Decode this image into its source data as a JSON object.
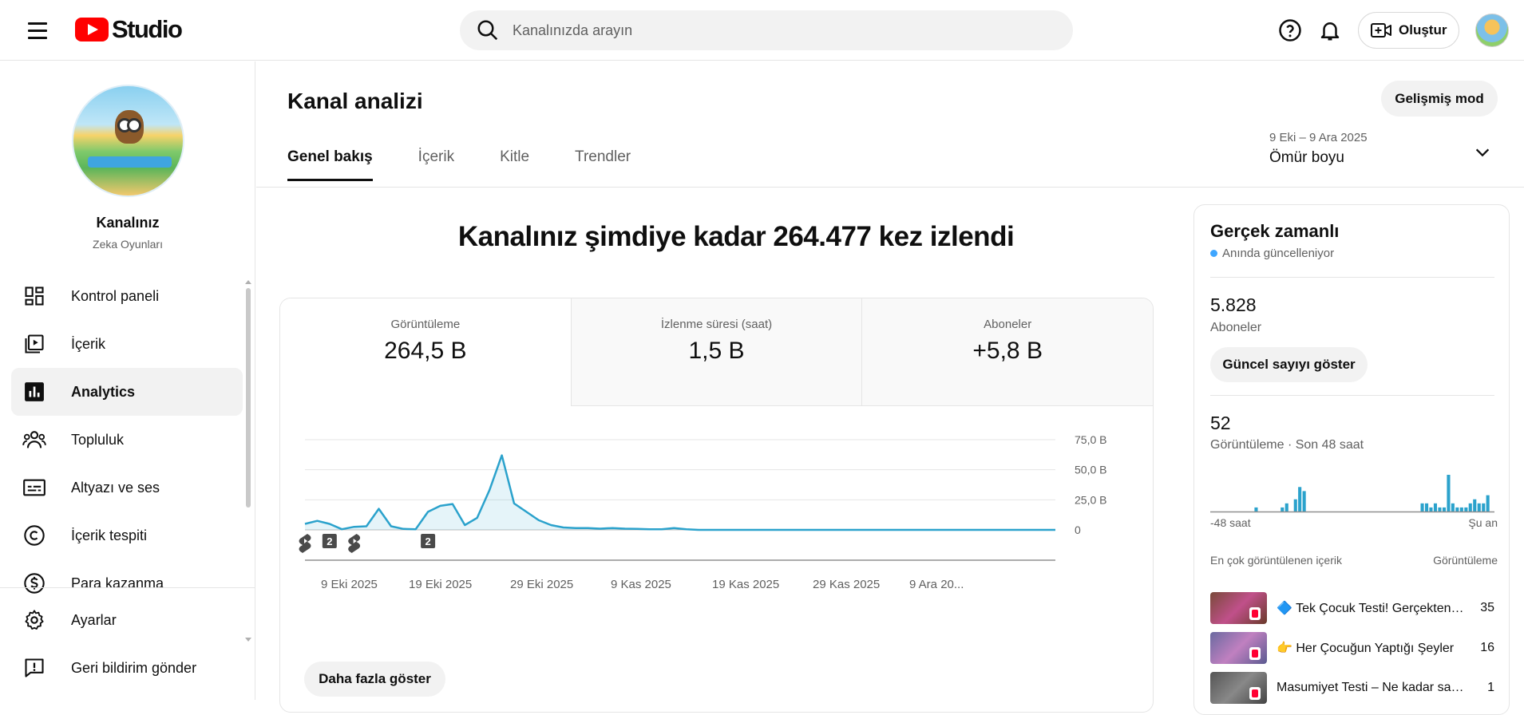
{
  "topbar": {
    "logo_text": "Studio",
    "search_placeholder": "Kanalınızda arayın",
    "create_label": "Oluştur"
  },
  "sidebar": {
    "channel_title": "Kanalınız",
    "channel_name": "Zeka Oyunları",
    "items": [
      {
        "label": "Kontrol paneli",
        "icon": "dashboard-icon"
      },
      {
        "label": "İçerik",
        "icon": "content-icon"
      },
      {
        "label": "Analytics",
        "icon": "analytics-icon",
        "active": true
      },
      {
        "label": "Topluluk",
        "icon": "community-icon"
      },
      {
        "label": "Altyazı ve ses",
        "icon": "subtitles-icon"
      },
      {
        "label": "İçerik tespiti",
        "icon": "copyright-icon"
      },
      {
        "label": "Para kazanma",
        "icon": "monetization-icon"
      }
    ],
    "bottom_items": [
      {
        "label": "Ayarlar",
        "icon": "gear-icon"
      },
      {
        "label": "Geri bildirim gönder",
        "icon": "feedback-icon"
      }
    ]
  },
  "main": {
    "title": "Kanal analizi",
    "advanced_mode_label": "Gelişmiş mod",
    "tabs": [
      {
        "label": "Genel bakış",
        "active": true
      },
      {
        "label": "İçerik"
      },
      {
        "label": "Kitle"
      },
      {
        "label": "Trendler"
      }
    ],
    "date_range": "9 Eki – 9 Ara 2025",
    "date_label": "Ömür boyu",
    "headline": "Kanalınız şimdiye kadar 264.477 kez izlendi",
    "metrics": [
      {
        "label": "Görüntüleme",
        "value": "264,5 B",
        "active": true
      },
      {
        "label": "İzlenme süresi (saat)",
        "value": "1,5 B"
      },
      {
        "label": "Aboneler",
        "value": "+5,8 B"
      }
    ],
    "show_more_label": "Daha fazla göster"
  },
  "chart_data": {
    "type": "area",
    "x_ticks": [
      "9 Eki 2025",
      "19 Eki 2025",
      "29 Eki 2025",
      "9 Kas 2025",
      "19 Kas 2025",
      "29 Kas 2025",
      "9 Ara 20..."
    ],
    "y_ticks": [
      "75,0 B",
      "50,0 B",
      "25,0 B",
      "0"
    ],
    "ylim": [
      0,
      75000
    ],
    "color": "#2ba2cc",
    "values": [
      5000,
      7500,
      5000,
      500,
      2500,
      3000,
      17500,
      3000,
      800,
      500,
      15000,
      20000,
      21500,
      4000,
      10000,
      33000,
      62000,
      22000,
      15000,
      8000,
      4000,
      2000,
      1500,
      1500,
      1000,
      1500,
      1000,
      800,
      500,
      500,
      1500,
      500,
      0,
      0,
      0,
      0,
      0,
      0,
      0,
      0,
      0,
      0,
      0,
      0,
      0,
      0,
      0,
      0,
      0,
      0,
      0,
      0,
      0,
      0,
      0,
      0,
      0,
      0,
      0,
      0,
      0,
      0
    ],
    "markers": [
      {
        "index": 0,
        "kind": "shorts",
        "label": ""
      },
      {
        "index": 2,
        "kind": "count",
        "label": "2"
      },
      {
        "index": 4,
        "kind": "shorts",
        "label": ""
      },
      {
        "index": 10,
        "kind": "count",
        "label": "2"
      }
    ]
  },
  "realtime": {
    "title": "Gerçek zamanlı",
    "live_text": "Anında güncelleniyor",
    "subscribers_value": "5.828",
    "subscribers_label": "Aboneler",
    "show_count_label": "Güncel sayıyı göster",
    "views_value": "52",
    "views_label": "Görüntüleme · Son 48 saat",
    "axis_left": "-48 saat",
    "axis_right": "Şu an",
    "hourly_views": [
      0,
      0,
      0,
      0,
      0,
      0,
      0,
      0,
      0,
      0,
      1,
      0,
      0,
      0,
      0,
      0,
      1,
      2,
      0,
      3,
      6,
      5,
      0,
      0,
      0,
      0,
      0,
      0,
      0,
      0,
      0,
      0,
      0,
      0,
      0,
      0,
      0,
      0,
      0,
      0,
      0,
      0,
      0,
      0,
      0,
      0,
      0,
      0,
      2,
      2,
      1,
      2,
      1,
      1,
      9,
      2,
      1,
      1,
      1,
      2,
      3,
      2,
      2,
      4,
      0
    ],
    "top_content_label": "En çok görüntülenen içerik",
    "top_content_metric": "Görüntüleme",
    "top_content": [
      {
        "title": "🔷 Tek Çocuk Testi! Gerçekten Tek Çocuk musun?",
        "views": "35",
        "thumb": "#7a4a3a"
      },
      {
        "title": "👉 Her Çocuğun Yaptığı Şeyler",
        "views": "16",
        "thumb": "#6a6aa0"
      },
      {
        "title": "Masumiyet Testi – Ne kadar saf kaldın?",
        "views": "1",
        "thumb": "#555555"
      }
    ]
  }
}
